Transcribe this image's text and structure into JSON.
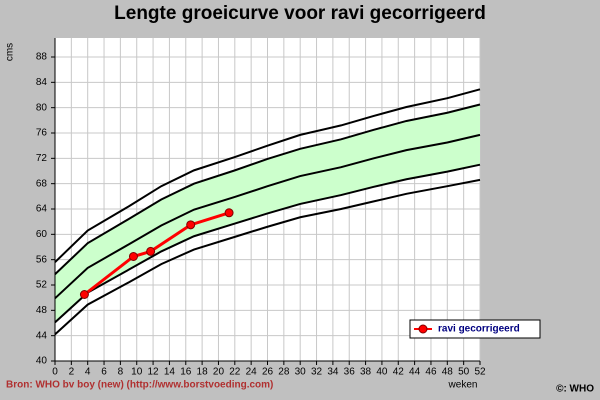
{
  "chart_data": {
    "type": "line",
    "title": "Lengte groeicurve voor ravi gecorrigeerd",
    "y_label": "cms",
    "x_label": "weken",
    "source": "Bron: WHO bv boy (new) (http://www.borstvoeding.com)",
    "copyright": "©: WHO",
    "xlim": [
      0,
      52
    ],
    "ylim": [
      40,
      91
    ],
    "xticks": [
      0,
      2,
      4,
      6,
      8,
      10,
      12,
      14,
      16,
      18,
      20,
      22,
      24,
      26,
      28,
      30,
      32,
      34,
      36,
      38,
      40,
      42,
      44,
      46,
      48,
      50,
      52
    ],
    "yticks": [
      40,
      44,
      48,
      52,
      56,
      60,
      64,
      68,
      72,
      76,
      80,
      84,
      88
    ],
    "grid": true,
    "reference_curves": {
      "x": [
        0,
        4,
        9,
        13,
        17,
        22,
        26,
        30,
        35,
        39,
        43,
        48,
        52
      ],
      "color": "#000000",
      "fill_color": "#ccffcc",
      "fill_between": [
        1,
        3
      ],
      "curves": [
        {
          "values": [
            44.2,
            48.9,
            52.4,
            55.3,
            57.6,
            59.6,
            61.2,
            62.7,
            64.0,
            65.2,
            66.4,
            67.6,
            68.6
          ]
        },
        {
          "values": [
            46.1,
            50.8,
            54.4,
            57.3,
            59.7,
            61.7,
            63.3,
            64.8,
            66.2,
            67.5,
            68.7,
            69.9,
            71.0
          ]
        },
        {
          "values": [
            49.9,
            54.7,
            58.4,
            61.4,
            63.9,
            65.9,
            67.6,
            69.2,
            70.6,
            72.0,
            73.3,
            74.5,
            75.7
          ]
        },
        {
          "values": [
            53.7,
            58.6,
            62.4,
            65.5,
            68.0,
            70.1,
            71.9,
            73.5,
            75.0,
            76.5,
            77.9,
            79.2,
            80.5
          ]
        },
        {
          "values": [
            55.6,
            60.6,
            64.4,
            67.6,
            70.1,
            72.2,
            74.0,
            75.7,
            77.2,
            78.7,
            80.1,
            81.5,
            82.9
          ]
        }
      ]
    },
    "series": [
      {
        "name": "ravi gecorrigeerd",
        "color": "#ff0000",
        "x": [
          3.6,
          9.6,
          11.7,
          16.6,
          21.3
        ],
        "values": [
          50.5,
          56.5,
          57.3,
          61.5,
          63.4
        ]
      }
    ],
    "legend": "lower right"
  }
}
